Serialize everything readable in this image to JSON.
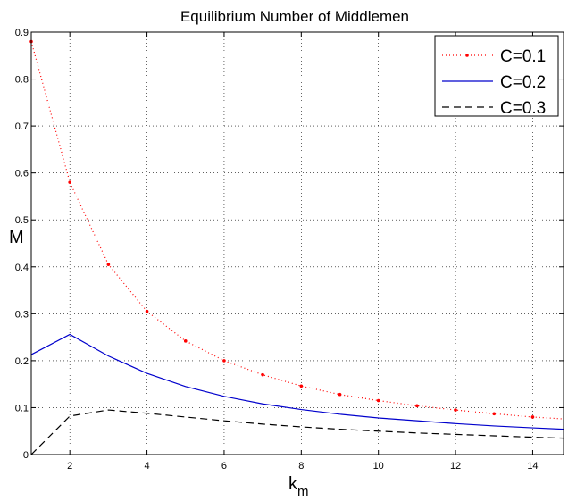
{
  "chart_data": {
    "type": "line",
    "title": "Equilibrium Number of Middlemen",
    "xlabel": "k",
    "xlabel_sub": "m",
    "ylabel": "M",
    "xlim": [
      1,
      14.8
    ],
    "ylim": [
      0,
      0.9
    ],
    "x_ticks": [
      2,
      4,
      6,
      8,
      10,
      12,
      14
    ],
    "y_ticks": [
      0,
      0.1,
      0.2,
      0.3,
      0.4,
      0.5,
      0.6,
      0.7,
      0.8,
      0.9
    ],
    "y_tick_labels": [
      "0",
      "0.1",
      "0.2",
      "0.3",
      "0.4",
      "0.5",
      "0.6",
      "0.7",
      "0.8",
      "0.9"
    ],
    "grid": true,
    "legend_position": "top-right",
    "series": [
      {
        "name": "C=0.1",
        "color": "#ff0000",
        "style": "dotted-with-markers",
        "x": [
          1,
          2,
          3,
          4,
          5,
          6,
          7,
          8,
          9,
          10,
          11,
          12,
          13,
          14,
          14.8
        ],
        "y": [
          0.88,
          0.58,
          0.405,
          0.305,
          0.242,
          0.2,
          0.17,
          0.146,
          0.128,
          0.115,
          0.104,
          0.095,
          0.087,
          0.08,
          0.076
        ]
      },
      {
        "name": "C=0.2",
        "color": "#0000cc",
        "style": "solid",
        "x": [
          1,
          2,
          3,
          4,
          5,
          6,
          7,
          8,
          9,
          10,
          11,
          12,
          13,
          14,
          14.8
        ],
        "y": [
          0.213,
          0.256,
          0.21,
          0.173,
          0.145,
          0.124,
          0.108,
          0.096,
          0.086,
          0.078,
          0.072,
          0.066,
          0.061,
          0.057,
          0.054
        ]
      },
      {
        "name": "C=0.3",
        "color": "#000000",
        "style": "dashed",
        "x": [
          1,
          2,
          3,
          4,
          5,
          6,
          7,
          8,
          9,
          10,
          11,
          12,
          13,
          14,
          14.8
        ],
        "y": [
          0.0,
          0.082,
          0.095,
          0.088,
          0.08,
          0.072,
          0.065,
          0.059,
          0.054,
          0.05,
          0.046,
          0.043,
          0.04,
          0.037,
          0.035
        ]
      }
    ]
  }
}
